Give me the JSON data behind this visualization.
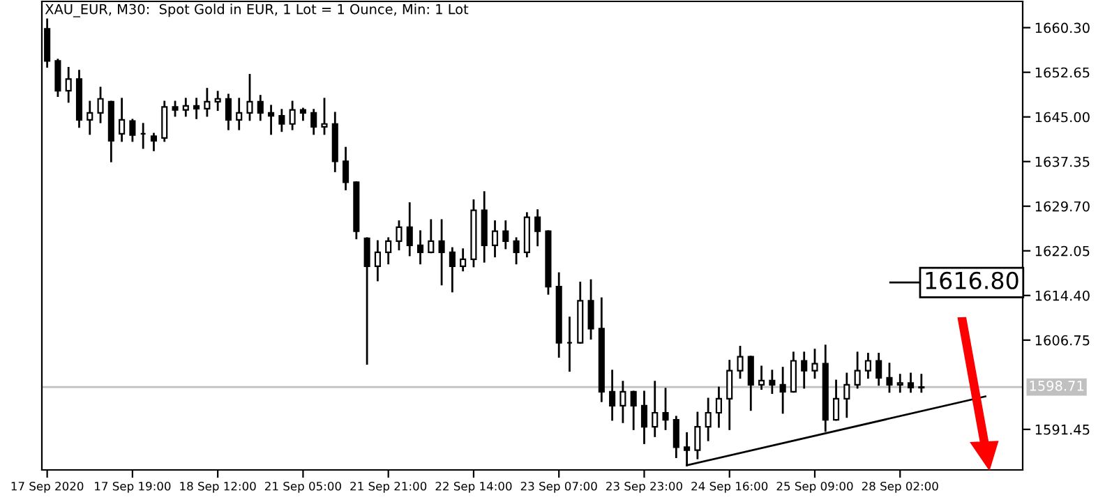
{
  "chart_data": {
    "type": "candlestick",
    "title": "XAU_EUR, M30:  Spot Gold in EUR, 1 Lot = 1 Ounce, Min: 1 Lot",
    "categories": [
      "17 Sep 2020",
      null,
      null,
      null,
      null,
      null,
      null,
      null,
      "17 Sep 19:00",
      null,
      null,
      null,
      null,
      null,
      null,
      null,
      "18 Sep 12:00",
      null,
      null,
      null,
      null,
      null,
      null,
      null,
      "21 Sep 05:00",
      null,
      null,
      null,
      null,
      null,
      null,
      null,
      "21 Sep 21:00",
      null,
      null,
      null,
      null,
      null,
      null,
      null,
      "22 Sep 14:00",
      null,
      null,
      null,
      null,
      null,
      null,
      null,
      "23 Sep 07:00",
      null,
      null,
      null,
      null,
      null,
      null,
      null,
      "23 Sep 23:00",
      null,
      null,
      null,
      null,
      null,
      null,
      null,
      "24 Sep 16:00",
      null,
      null,
      null,
      null,
      null,
      null,
      null,
      "25 Sep 09:00",
      null,
      null,
      null,
      null,
      null,
      null,
      null,
      "28 Sep 02:00",
      null,
      null,
      null,
      null,
      null,
      null,
      null,
      null,
      null,
      null,
      null
    ],
    "color": "#000000",
    "ohlc": [
      [
        1660.1,
        1661.7,
        1653.6,
        1654.6
      ],
      [
        1654.6,
        1654.8,
        1648.6,
        1649.5
      ],
      [
        1649.5,
        1653.4,
        1647.6,
        1651.5
      ],
      [
        1651.5,
        1652.9,
        1643.3,
        1644.5
      ],
      [
        1644.5,
        1647.6,
        1642.1,
        1645.7
      ],
      [
        1645.7,
        1650.0,
        1644.1,
        1648.1
      ],
      [
        1647.6,
        1647.6,
        1637.4,
        1640.9
      ],
      [
        1642.1,
        1648.1,
        1640.9,
        1644.5
      ],
      [
        1644.3,
        1644.5,
        1640.9,
        1641.9
      ],
      [
        1642.1,
        1643.8,
        1639.7,
        1642.1
      ],
      [
        1641.7,
        1642.1,
        1639.3,
        1640.9
      ],
      [
        1641.4,
        1647.6,
        1640.9,
        1646.7
      ],
      [
        1646.7,
        1647.6,
        1645.2,
        1646.2
      ],
      [
        1646.2,
        1648.1,
        1645.2,
        1646.9
      ],
      [
        1646.9,
        1648.1,
        1644.8,
        1646.4
      ],
      [
        1646.4,
        1649.8,
        1645.2,
        1647.6
      ],
      [
        1647.6,
        1649.3,
        1646.2,
        1648.1
      ],
      [
        1648.1,
        1648.8,
        1642.9,
        1644.5
      ],
      [
        1644.5,
        1648.1,
        1642.9,
        1645.7
      ],
      [
        1645.7,
        1652.2,
        1644.5,
        1647.6
      ],
      [
        1647.6,
        1648.6,
        1644.5,
        1645.7
      ],
      [
        1645.7,
        1646.9,
        1642.1,
        1645.2
      ],
      [
        1645.2,
        1646.2,
        1642.6,
        1643.8
      ],
      [
        1643.8,
        1647.6,
        1642.9,
        1646.2
      ],
      [
        1646.2,
        1646.4,
        1644.5,
        1645.7
      ],
      [
        1645.7,
        1646.2,
        1642.1,
        1643.3
      ],
      [
        1643.3,
        1648.1,
        1642.1,
        1643.8
      ],
      [
        1643.8,
        1645.7,
        1635.7,
        1637.4
      ],
      [
        1637.4,
        1639.7,
        1632.6,
        1633.8
      ],
      [
        1633.8,
        1633.8,
        1624.2,
        1625.4
      ],
      [
        1624.2,
        1624.2,
        1602.7,
        1619.4
      ],
      [
        1619.4,
        1623.7,
        1617.0,
        1621.8
      ],
      [
        1621.8,
        1624.2,
        1619.9,
        1623.7
      ],
      [
        1623.7,
        1627.1,
        1622.3,
        1626.1
      ],
      [
        1626.1,
        1630.2,
        1621.3,
        1623.0
      ],
      [
        1623.0,
        1625.4,
        1619.9,
        1621.8
      ],
      [
        1621.8,
        1627.3,
        1621.8,
        1623.7
      ],
      [
        1623.7,
        1627.3,
        1616.3,
        1621.8
      ],
      [
        1621.8,
        1622.5,
        1615.1,
        1619.4
      ],
      [
        1619.4,
        1622.3,
        1618.7,
        1620.6
      ],
      [
        1620.6,
        1630.7,
        1619.4,
        1629.0
      ],
      [
        1629.0,
        1632.1,
        1620.2,
        1623.0
      ],
      [
        1623.0,
        1627.1,
        1621.1,
        1625.4
      ],
      [
        1625.4,
        1627.1,
        1622.5,
        1623.7
      ],
      [
        1623.7,
        1624.2,
        1619.9,
        1621.8
      ],
      [
        1621.8,
        1628.5,
        1621.1,
        1627.8
      ],
      [
        1627.8,
        1629.0,
        1623.0,
        1625.4
      ],
      [
        1625.4,
        1625.4,
        1614.7,
        1615.9
      ],
      [
        1615.9,
        1618.2,
        1603.9,
        1606.3
      ],
      [
        1606.3,
        1610.6,
        1601.5,
        1606.3
      ],
      [
        1606.3,
        1616.6,
        1606.3,
        1613.5
      ],
      [
        1613.5,
        1617.0,
        1607.0,
        1608.7
      ],
      [
        1608.7,
        1613.9,
        1596.3,
        1597.9
      ],
      [
        1597.9,
        1601.5,
        1593.1,
        1595.5
      ],
      [
        1595.5,
        1599.6,
        1592.7,
        1597.9
      ],
      [
        1597.9,
        1597.9,
        1591.5,
        1595.5
      ],
      [
        1595.5,
        1597.9,
        1589.1,
        1591.9
      ],
      [
        1591.9,
        1599.6,
        1590.3,
        1594.3
      ],
      [
        1594.3,
        1598.4,
        1591.5,
        1593.1
      ],
      [
        1593.1,
        1593.6,
        1586.7,
        1588.4
      ],
      [
        1588.4,
        1590.8,
        1585.3,
        1587.9
      ],
      [
        1587.9,
        1594.3,
        1586.5,
        1591.9
      ],
      [
        1591.9,
        1596.7,
        1589.6,
        1594.3
      ],
      [
        1594.3,
        1598.6,
        1591.9,
        1596.7
      ],
      [
        1596.7,
        1603.2,
        1591.5,
        1601.5
      ],
      [
        1601.5,
        1605.6,
        1600.3,
        1603.9
      ],
      [
        1603.9,
        1603.9,
        1594.8,
        1599.1
      ],
      [
        1599.1,
        1602.2,
        1598.4,
        1599.8
      ],
      [
        1599.8,
        1601.5,
        1597.7,
        1599.1
      ],
      [
        1599.1,
        1602.0,
        1594.3,
        1597.9
      ],
      [
        1597.9,
        1604.6,
        1597.9,
        1603.2
      ],
      [
        1603.2,
        1604.6,
        1598.6,
        1601.5
      ],
      [
        1601.5,
        1605.1,
        1600.3,
        1602.7
      ],
      [
        1602.7,
        1605.8,
        1591.2,
        1593.1
      ],
      [
        1593.1,
        1599.8,
        1593.1,
        1596.7
      ],
      [
        1596.7,
        1601.0,
        1593.6,
        1599.1
      ],
      [
        1599.1,
        1604.6,
        1598.6,
        1601.5
      ],
      [
        1601.5,
        1604.4,
        1600.3,
        1603.2
      ],
      [
        1603.2,
        1604.4,
        1599.1,
        1600.3
      ],
      [
        1600.3,
        1602.7,
        1597.9,
        1599.1
      ],
      [
        1599.1,
        1600.8,
        1597.9,
        1599.4
      ],
      [
        1599.4,
        1601.0,
        1597.9,
        1598.6
      ],
      [
        1598.6,
        1600.8,
        1597.9,
        1598.71
      ],
      null,
      null,
      null,
      null,
      null,
      null,
      null,
      null,
      null
    ],
    "series": [
      {
        "type": "line",
        "color": "#000000",
        "values": [
          null,
          null,
          null,
          null,
          null,
          null,
          null,
          null,
          null,
          null,
          null,
          null,
          null,
          null,
          null,
          null,
          null,
          null,
          null,
          null,
          null,
          null,
          null,
          null,
          null,
          null,
          null,
          null,
          null,
          null,
          null,
          null,
          null,
          null,
          null,
          null,
          null,
          null,
          null,
          null,
          null,
          null,
          null,
          null,
          null,
          null,
          null,
          null,
          null,
          null,
          null,
          null,
          null,
          null,
          null,
          null,
          null,
          null,
          null,
          null,
          1585.3,
          null,
          null,
          null,
          null,
          null,
          null,
          null,
          null,
          null,
          null,
          null,
          null,
          null,
          null,
          null,
          null,
          null,
          null,
          null,
          null,
          null,
          null,
          null,
          null,
          null,
          null,
          null,
          1597.1,
          null,
          null,
          null
        ]
      }
    ],
    "ylim": [
      1584.5,
      1664.8
    ],
    "yticks": [
      1591.45,
      1606.75,
      {
        "value": 1614.4,
        "label": "1614.40"
      },
      1622.05,
      {
        "value": 1629.7,
        "label": "1629.70"
      },
      1637.35,
      {
        "value": 1645,
        "label": "1645.00"
      },
      1652.65,
      {
        "value": 1660.3,
        "label": "1660.30"
      }
    ],
    "ref_lines": [
      {
        "axis": "y",
        "value": 1598.71,
        "label": "1598.71",
        "color": "#c0c0c0"
      }
    ],
    "annotations": [
      "1616.80"
    ],
    "grid": false,
    "legend": false
  }
}
